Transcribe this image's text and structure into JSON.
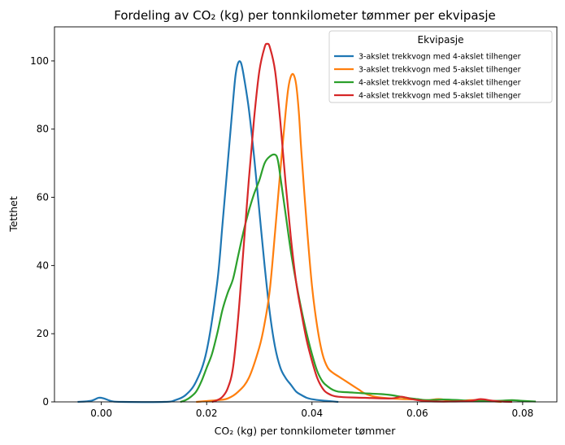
{
  "chart_data": {
    "type": "line",
    "title": "Fordeling av  CO₂ (kg) per tonnkilometer tømmer per ekvipasje",
    "xlabel": "CO₂ (kg) per tonnkilometer tømmer",
    "ylabel": "Tetthet",
    "xlim": [
      -0.0089,
      0.0865
    ],
    "ylim": [
      0,
      110
    ],
    "xticks": [
      0.0,
      0.02,
      0.04,
      0.06,
      0.08
    ],
    "xtick_labels": [
      "0.00",
      "0.02",
      "0.04",
      "0.06",
      "0.08"
    ],
    "yticks": [
      0,
      20,
      40,
      60,
      80,
      100
    ],
    "ytick_labels": [
      "0",
      "20",
      "40",
      "60",
      "80",
      "100"
    ],
    "grid": false,
    "legend": {
      "title": "Ekvipasje",
      "position": "top-right"
    },
    "series": [
      {
        "name": "3-akslet trekkvogn med 4-akslet tilhenger",
        "color": "#1f77b4",
        "points": [
          [
            -0.0045,
            0
          ],
          [
            -0.002,
            0.3
          ],
          [
            -0.0005,
            1.2
          ],
          [
            0.0005,
            1.0
          ],
          [
            0.002,
            0.2
          ],
          [
            0.004,
            0
          ],
          [
            0.012,
            0
          ],
          [
            0.014,
            0.5
          ],
          [
            0.016,
            2
          ],
          [
            0.018,
            6
          ],
          [
            0.02,
            15
          ],
          [
            0.022,
            35
          ],
          [
            0.023,
            52
          ],
          [
            0.024,
            70
          ],
          [
            0.025,
            88
          ],
          [
            0.0255,
            96
          ],
          [
            0.026,
            99.5
          ],
          [
            0.0265,
            99.5
          ],
          [
            0.027,
            96
          ],
          [
            0.028,
            86
          ],
          [
            0.029,
            72
          ],
          [
            0.03,
            56
          ],
          [
            0.031,
            40
          ],
          [
            0.032,
            26
          ],
          [
            0.033,
            16
          ],
          [
            0.034,
            10
          ],
          [
            0.035,
            7
          ],
          [
            0.036,
            5
          ],
          [
            0.037,
            3
          ],
          [
            0.038,
            2
          ],
          [
            0.039,
            1.2
          ],
          [
            0.04,
            0.8
          ],
          [
            0.042,
            0.4
          ],
          [
            0.045,
            0
          ]
        ]
      },
      {
        "name": "3-akslet trekkvogn med 5-akslet tilhenger",
        "color": "#ff7f0e",
        "points": [
          [
            0.018,
            0
          ],
          [
            0.022,
            0.5
          ],
          [
            0.024,
            1
          ],
          [
            0.026,
            3
          ],
          [
            0.028,
            7
          ],
          [
            0.03,
            16
          ],
          [
            0.031,
            23
          ],
          [
            0.032,
            33
          ],
          [
            0.033,
            50
          ],
          [
            0.034,
            68
          ],
          [
            0.035,
            85
          ],
          [
            0.0355,
            92
          ],
          [
            0.036,
            95.5
          ],
          [
            0.0365,
            96
          ],
          [
            0.037,
            93
          ],
          [
            0.0375,
            85
          ],
          [
            0.038,
            73
          ],
          [
            0.039,
            52
          ],
          [
            0.04,
            34
          ],
          [
            0.041,
            22
          ],
          [
            0.042,
            14
          ],
          [
            0.043,
            10
          ],
          [
            0.044,
            8.5
          ],
          [
            0.045,
            7.5
          ],
          [
            0.046,
            6.5
          ],
          [
            0.047,
            5.5
          ],
          [
            0.048,
            4.5
          ],
          [
            0.049,
            3.5
          ],
          [
            0.05,
            2.5
          ],
          [
            0.052,
            1.5
          ],
          [
            0.055,
            1
          ],
          [
            0.058,
            0.8
          ],
          [
            0.06,
            0.7
          ],
          [
            0.062,
            0.5
          ],
          [
            0.064,
            0.8
          ],
          [
            0.066,
            0.5
          ],
          [
            0.068,
            0.3
          ],
          [
            0.07,
            0.5
          ],
          [
            0.072,
            0.5
          ],
          [
            0.074,
            0.2
          ],
          [
            0.076,
            0
          ]
        ]
      },
      {
        "name": "4-akslet trekkvogn med 4-akslet tilhenger",
        "color": "#2ca02c",
        "points": [
          [
            0.015,
            0
          ],
          [
            0.016,
            0.5
          ],
          [
            0.017,
            1.5
          ],
          [
            0.018,
            3
          ],
          [
            0.019,
            6
          ],
          [
            0.02,
            10
          ],
          [
            0.021,
            14
          ],
          [
            0.022,
            20
          ],
          [
            0.023,
            27
          ],
          [
            0.024,
            32
          ],
          [
            0.025,
            36
          ],
          [
            0.026,
            43
          ],
          [
            0.027,
            50
          ],
          [
            0.028,
            56
          ],
          [
            0.029,
            61
          ],
          [
            0.03,
            65
          ],
          [
            0.031,
            70
          ],
          [
            0.032,
            72
          ],
          [
            0.033,
            72.5
          ],
          [
            0.0335,
            71
          ],
          [
            0.034,
            66
          ],
          [
            0.035,
            55
          ],
          [
            0.036,
            44
          ],
          [
            0.037,
            35
          ],
          [
            0.038,
            27
          ],
          [
            0.039,
            20
          ],
          [
            0.04,
            14
          ],
          [
            0.041,
            9
          ],
          [
            0.042,
            6
          ],
          [
            0.043,
            4.5
          ],
          [
            0.044,
            3.5
          ],
          [
            0.045,
            3
          ],
          [
            0.047,
            2.8
          ],
          [
            0.05,
            2.5
          ],
          [
            0.053,
            2.3
          ],
          [
            0.055,
            2
          ],
          [
            0.058,
            1.2
          ],
          [
            0.06,
            0.8
          ],
          [
            0.062,
            0.5
          ],
          [
            0.065,
            0.7
          ],
          [
            0.068,
            0.5
          ],
          [
            0.07,
            0.3
          ],
          [
            0.075,
            0.3
          ],
          [
            0.078,
            0.5
          ],
          [
            0.08,
            0.3
          ],
          [
            0.0825,
            0.1
          ]
        ]
      },
      {
        "name": "4-akslet trekkvogn med 5-akslet tilhenger",
        "color": "#d62728",
        "points": [
          [
            0.021,
            0
          ],
          [
            0.022,
            0.5
          ],
          [
            0.023,
            1.5
          ],
          [
            0.024,
            4
          ],
          [
            0.025,
            10
          ],
          [
            0.026,
            25
          ],
          [
            0.027,
            45
          ],
          [
            0.028,
            65
          ],
          [
            0.029,
            83
          ],
          [
            0.03,
            97
          ],
          [
            0.031,
            104
          ],
          [
            0.0315,
            105
          ],
          [
            0.032,
            104
          ],
          [
            0.033,
            97
          ],
          [
            0.034,
            82
          ],
          [
            0.035,
            64
          ],
          [
            0.036,
            48
          ],
          [
            0.037,
            35
          ],
          [
            0.038,
            26
          ],
          [
            0.039,
            18
          ],
          [
            0.04,
            12
          ],
          [
            0.041,
            7
          ],
          [
            0.042,
            4
          ],
          [
            0.043,
            2.5
          ],
          [
            0.045,
            1.5
          ],
          [
            0.05,
            1.2
          ],
          [
            0.055,
            1
          ],
          [
            0.057,
            1.5
          ],
          [
            0.059,
            0.8
          ],
          [
            0.062,
            0.2
          ],
          [
            0.066,
            0.1
          ],
          [
            0.07,
            0.3
          ],
          [
            0.072,
            0.8
          ],
          [
            0.074,
            0.4
          ],
          [
            0.076,
            0.1
          ],
          [
            0.078,
            0
          ]
        ]
      }
    ]
  }
}
